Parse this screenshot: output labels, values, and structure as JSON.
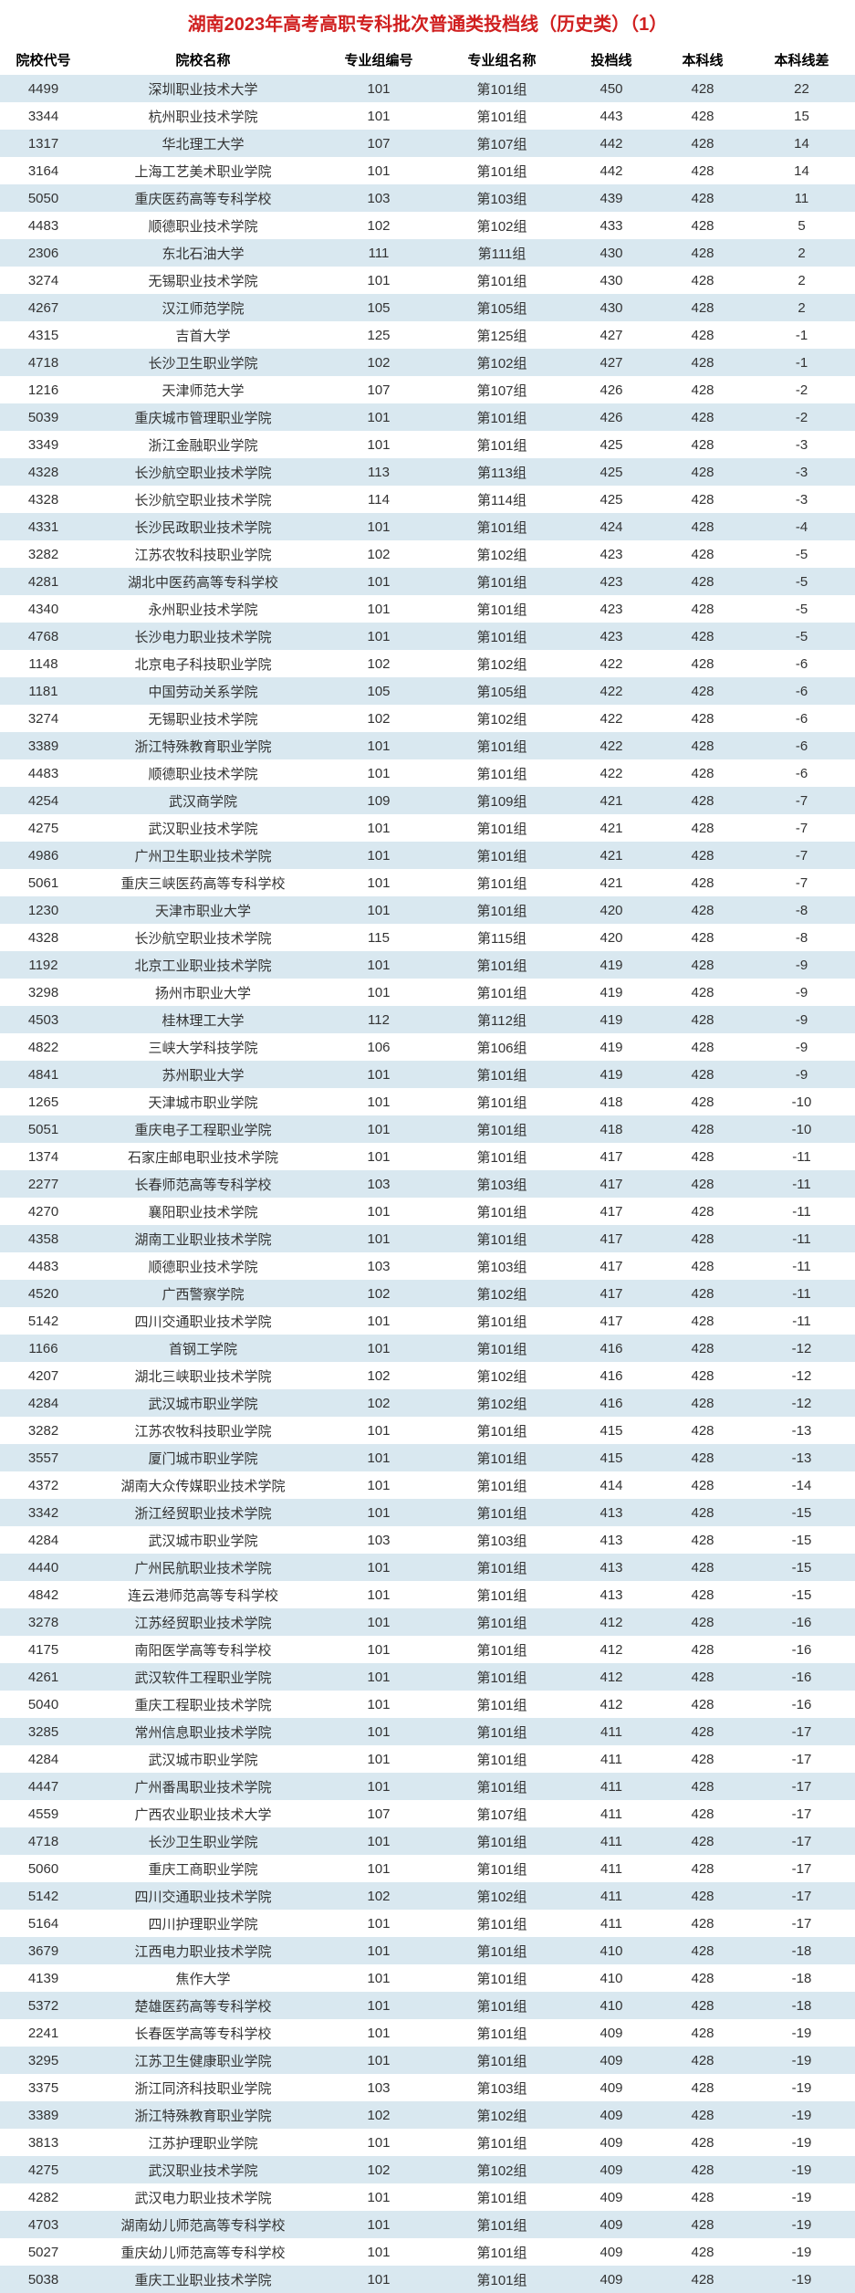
{
  "title": "湖南2023年高考高职专科批次普通类投档线（历史类）（1）",
  "title_color": "#d02020",
  "row_even_bg": "#d9e8f0",
  "row_odd_bg": "#ffffff",
  "headers": [
    "院校代号",
    "院校名称",
    "专业组编号",
    "专业组名称",
    "投档线",
    "本科线",
    "本科线差"
  ],
  "rows": [
    [
      "4499",
      "深圳职业技术大学",
      "101",
      "第101组",
      "450",
      "428",
      "22"
    ],
    [
      "3344",
      "杭州职业技术学院",
      "101",
      "第101组",
      "443",
      "428",
      "15"
    ],
    [
      "1317",
      "华北理工大学",
      "107",
      "第107组",
      "442",
      "428",
      "14"
    ],
    [
      "3164",
      "上海工艺美术职业学院",
      "101",
      "第101组",
      "442",
      "428",
      "14"
    ],
    [
      "5050",
      "重庆医药高等专科学校",
      "103",
      "第103组",
      "439",
      "428",
      "11"
    ],
    [
      "4483",
      "顺德职业技术学院",
      "102",
      "第102组",
      "433",
      "428",
      "5"
    ],
    [
      "2306",
      "东北石油大学",
      "111",
      "第111组",
      "430",
      "428",
      "2"
    ],
    [
      "3274",
      "无锡职业技术学院",
      "101",
      "第101组",
      "430",
      "428",
      "2"
    ],
    [
      "4267",
      "汉江师范学院",
      "105",
      "第105组",
      "430",
      "428",
      "2"
    ],
    [
      "4315",
      "吉首大学",
      "125",
      "第125组",
      "427",
      "428",
      "-1"
    ],
    [
      "4718",
      "长沙卫生职业学院",
      "102",
      "第102组",
      "427",
      "428",
      "-1"
    ],
    [
      "1216",
      "天津师范大学",
      "107",
      "第107组",
      "426",
      "428",
      "-2"
    ],
    [
      "5039",
      "重庆城市管理职业学院",
      "101",
      "第101组",
      "426",
      "428",
      "-2"
    ],
    [
      "3349",
      "浙江金融职业学院",
      "101",
      "第101组",
      "425",
      "428",
      "-3"
    ],
    [
      "4328",
      "长沙航空职业技术学院",
      "113",
      "第113组",
      "425",
      "428",
      "-3"
    ],
    [
      "4328",
      "长沙航空职业技术学院",
      "114",
      "第114组",
      "425",
      "428",
      "-3"
    ],
    [
      "4331",
      "长沙民政职业技术学院",
      "101",
      "第101组",
      "424",
      "428",
      "-4"
    ],
    [
      "3282",
      "江苏农牧科技职业学院",
      "102",
      "第102组",
      "423",
      "428",
      "-5"
    ],
    [
      "4281",
      "湖北中医药高等专科学校",
      "101",
      "第101组",
      "423",
      "428",
      "-5"
    ],
    [
      "4340",
      "永州职业技术学院",
      "101",
      "第101组",
      "423",
      "428",
      "-5"
    ],
    [
      "4768",
      "长沙电力职业技术学院",
      "101",
      "第101组",
      "423",
      "428",
      "-5"
    ],
    [
      "1148",
      "北京电子科技职业学院",
      "102",
      "第102组",
      "422",
      "428",
      "-6"
    ],
    [
      "1181",
      "中国劳动关系学院",
      "105",
      "第105组",
      "422",
      "428",
      "-6"
    ],
    [
      "3274",
      "无锡职业技术学院",
      "102",
      "第102组",
      "422",
      "428",
      "-6"
    ],
    [
      "3389",
      "浙江特殊教育职业学院",
      "101",
      "第101组",
      "422",
      "428",
      "-6"
    ],
    [
      "4483",
      "顺德职业技术学院",
      "101",
      "第101组",
      "422",
      "428",
      "-6"
    ],
    [
      "4254",
      "武汉商学院",
      "109",
      "第109组",
      "421",
      "428",
      "-7"
    ],
    [
      "4275",
      "武汉职业技术学院",
      "101",
      "第101组",
      "421",
      "428",
      "-7"
    ],
    [
      "4986",
      "广州卫生职业技术学院",
      "101",
      "第101组",
      "421",
      "428",
      "-7"
    ],
    [
      "5061",
      "重庆三峡医药高等专科学校",
      "101",
      "第101组",
      "421",
      "428",
      "-7"
    ],
    [
      "1230",
      "天津市职业大学",
      "101",
      "第101组",
      "420",
      "428",
      "-8"
    ],
    [
      "4328",
      "长沙航空职业技术学院",
      "115",
      "第115组",
      "420",
      "428",
      "-8"
    ],
    [
      "1192",
      "北京工业职业技术学院",
      "101",
      "第101组",
      "419",
      "428",
      "-9"
    ],
    [
      "3298",
      "扬州市职业大学",
      "101",
      "第101组",
      "419",
      "428",
      "-9"
    ],
    [
      "4503",
      "桂林理工大学",
      "112",
      "第112组",
      "419",
      "428",
      "-9"
    ],
    [
      "4822",
      "三峡大学科技学院",
      "106",
      "第106组",
      "419",
      "428",
      "-9"
    ],
    [
      "4841",
      "苏州职业大学",
      "101",
      "第101组",
      "419",
      "428",
      "-9"
    ],
    [
      "1265",
      "天津城市职业学院",
      "101",
      "第101组",
      "418",
      "428",
      "-10"
    ],
    [
      "5051",
      "重庆电子工程职业学院",
      "101",
      "第101组",
      "418",
      "428",
      "-10"
    ],
    [
      "1374",
      "石家庄邮电职业技术学院",
      "101",
      "第101组",
      "417",
      "428",
      "-11"
    ],
    [
      "2277",
      "长春师范高等专科学校",
      "103",
      "第103组",
      "417",
      "428",
      "-11"
    ],
    [
      "4270",
      "襄阳职业技术学院",
      "101",
      "第101组",
      "417",
      "428",
      "-11"
    ],
    [
      "4358",
      "湖南工业职业技术学院",
      "101",
      "第101组",
      "417",
      "428",
      "-11"
    ],
    [
      "4483",
      "顺德职业技术学院",
      "103",
      "第103组",
      "417",
      "428",
      "-11"
    ],
    [
      "4520",
      "广西警察学院",
      "102",
      "第102组",
      "417",
      "428",
      "-11"
    ],
    [
      "5142",
      "四川交通职业技术学院",
      "101",
      "第101组",
      "417",
      "428",
      "-11"
    ],
    [
      "1166",
      "首钢工学院",
      "101",
      "第101组",
      "416",
      "428",
      "-12"
    ],
    [
      "4207",
      "湖北三峡职业技术学院",
      "102",
      "第102组",
      "416",
      "428",
      "-12"
    ],
    [
      "4284",
      "武汉城市职业学院",
      "102",
      "第102组",
      "416",
      "428",
      "-12"
    ],
    [
      "3282",
      "江苏农牧科技职业学院",
      "101",
      "第101组",
      "415",
      "428",
      "-13"
    ],
    [
      "3557",
      "厦门城市职业学院",
      "101",
      "第101组",
      "415",
      "428",
      "-13"
    ],
    [
      "4372",
      "湖南大众传媒职业技术学院",
      "101",
      "第101组",
      "414",
      "428",
      "-14"
    ],
    [
      "3342",
      "浙江经贸职业技术学院",
      "101",
      "第101组",
      "413",
      "428",
      "-15"
    ],
    [
      "4284",
      "武汉城市职业学院",
      "103",
      "第103组",
      "413",
      "428",
      "-15"
    ],
    [
      "4440",
      "广州民航职业技术学院",
      "101",
      "第101组",
      "413",
      "428",
      "-15"
    ],
    [
      "4842",
      "连云港师范高等专科学校",
      "101",
      "第101组",
      "413",
      "428",
      "-15"
    ],
    [
      "3278",
      "江苏经贸职业技术学院",
      "101",
      "第101组",
      "412",
      "428",
      "-16"
    ],
    [
      "4175",
      "南阳医学高等专科学校",
      "101",
      "第101组",
      "412",
      "428",
      "-16"
    ],
    [
      "4261",
      "武汉软件工程职业学院",
      "101",
      "第101组",
      "412",
      "428",
      "-16"
    ],
    [
      "5040",
      "重庆工程职业技术学院",
      "101",
      "第101组",
      "412",
      "428",
      "-16"
    ],
    [
      "3285",
      "常州信息职业技术学院",
      "101",
      "第101组",
      "411",
      "428",
      "-17"
    ],
    [
      "4284",
      "武汉城市职业学院",
      "101",
      "第101组",
      "411",
      "428",
      "-17"
    ],
    [
      "4447",
      "广州番禺职业技术学院",
      "101",
      "第101组",
      "411",
      "428",
      "-17"
    ],
    [
      "4559",
      "广西农业职业技术大学",
      "107",
      "第107组",
      "411",
      "428",
      "-17"
    ],
    [
      "4718",
      "长沙卫生职业学院",
      "101",
      "第101组",
      "411",
      "428",
      "-17"
    ],
    [
      "5060",
      "重庆工商职业学院",
      "101",
      "第101组",
      "411",
      "428",
      "-17"
    ],
    [
      "5142",
      "四川交通职业技术学院",
      "102",
      "第102组",
      "411",
      "428",
      "-17"
    ],
    [
      "5164",
      "四川护理职业学院",
      "101",
      "第101组",
      "411",
      "428",
      "-17"
    ],
    [
      "3679",
      "江西电力职业技术学院",
      "101",
      "第101组",
      "410",
      "428",
      "-18"
    ],
    [
      "4139",
      "焦作大学",
      "101",
      "第101组",
      "410",
      "428",
      "-18"
    ],
    [
      "5372",
      "楚雄医药高等专科学校",
      "101",
      "第101组",
      "410",
      "428",
      "-18"
    ],
    [
      "2241",
      "长春医学高等专科学校",
      "101",
      "第101组",
      "409",
      "428",
      "-19"
    ],
    [
      "3295",
      "江苏卫生健康职业学院",
      "101",
      "第101组",
      "409",
      "428",
      "-19"
    ],
    [
      "3375",
      "浙江同济科技职业学院",
      "103",
      "第103组",
      "409",
      "428",
      "-19"
    ],
    [
      "3389",
      "浙江特殊教育职业学院",
      "102",
      "第102组",
      "409",
      "428",
      "-19"
    ],
    [
      "3813",
      "江苏护理职业学院",
      "101",
      "第101组",
      "409",
      "428",
      "-19"
    ],
    [
      "4275",
      "武汉职业技术学院",
      "102",
      "第102组",
      "409",
      "428",
      "-19"
    ],
    [
      "4282",
      "武汉电力职业技术学院",
      "101",
      "第101组",
      "409",
      "428",
      "-19"
    ],
    [
      "4703",
      "湖南幼儿师范高等专科学校",
      "101",
      "第101组",
      "409",
      "428",
      "-19"
    ],
    [
      "5027",
      "重庆幼儿师范高等专科学校",
      "101",
      "第101组",
      "409",
      "428",
      "-19"
    ],
    [
      "5038",
      "重庆工业职业技术学院",
      "101",
      "第101组",
      "409",
      "428",
      "-19"
    ]
  ]
}
